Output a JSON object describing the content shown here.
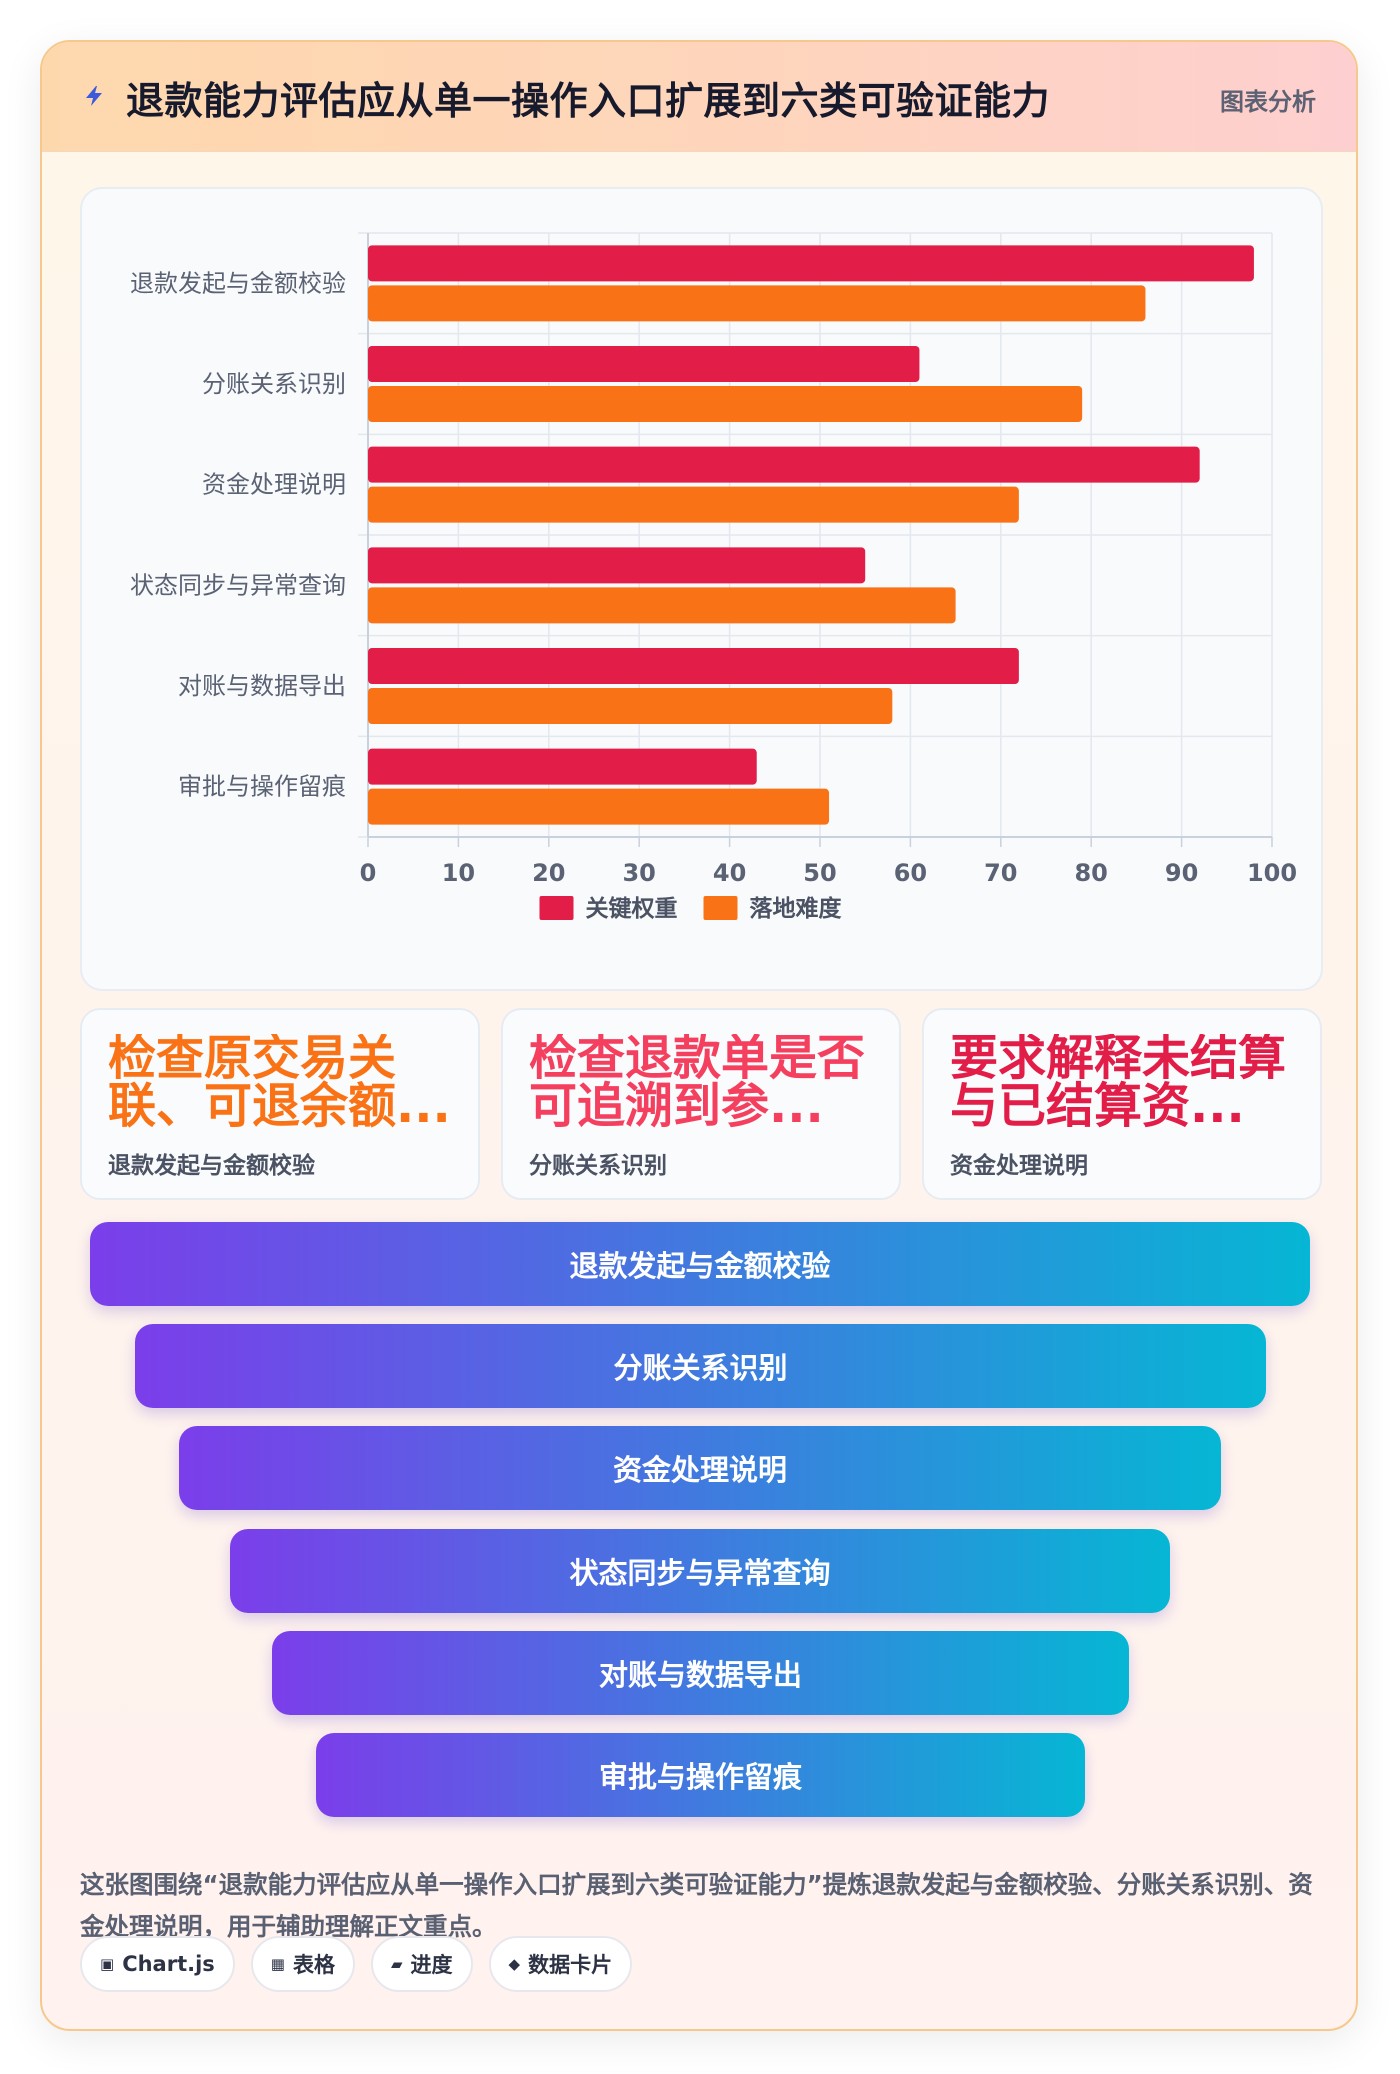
{
  "header": {
    "title": "退款能力评估应从单一操作入口扩展到六类可验证能力",
    "tag": "图表分析",
    "icon": "lightning-icon"
  },
  "colors": {
    "weight": "#e11d48",
    "difficulty": "#f97316",
    "kpi_orange": "#f97316",
    "kpi_pink": "#f43f5e",
    "kpi_red": "#e11d48",
    "funnel_start": "#7b3eea",
    "funnel_end": "#06b6d4"
  },
  "chart_data": {
    "type": "bar",
    "orientation": "horizontal",
    "categories": [
      "退款发起与金额校验",
      "分账关系识别",
      "资金处理说明",
      "状态同步与异常查询",
      "对账与数据导出",
      "审批与操作留痕"
    ],
    "series": [
      {
        "name": "关键权重",
        "values": [
          98,
          61,
          92,
          55,
          72,
          43
        ]
      },
      {
        "name": "落地难度",
        "values": [
          86,
          79,
          72,
          65,
          58,
          51
        ]
      }
    ],
    "xlim": [
      0,
      100
    ],
    "xticks": [
      "0",
      "10",
      "20",
      "30",
      "40",
      "50",
      "60",
      "70",
      "80",
      "90",
      "100"
    ],
    "grid": true,
    "legend": "bottom"
  },
  "kpis": [
    {
      "value": "检查原交易关联、可退余额...",
      "label": "退款发起与金额校验"
    },
    {
      "value": "检查退款单是否可追溯到参...",
      "label": "分账关系识别"
    },
    {
      "value": "要求解释未结算与已结算资...",
      "label": "资金处理说明"
    }
  ],
  "funnel": [
    "退款发起与金额校验",
    "分账关系识别",
    "资金处理说明",
    "状态同步与异常查询",
    "对账与数据导出",
    "审批与操作留痕"
  ],
  "summary": "这张图围绕“退款能力评估应从单一操作入口扩展到六类可验证能力”提炼退款发起与金额校验、分账关系识别、资金处理说明，用于辅助理解正文重点。",
  "chips": [
    {
      "icon": "▣",
      "label": "Chart.js"
    },
    {
      "icon": "▦",
      "label": "表格"
    },
    {
      "icon": "▰",
      "label": "进度"
    },
    {
      "icon": "◆",
      "label": "数据卡片"
    }
  ]
}
